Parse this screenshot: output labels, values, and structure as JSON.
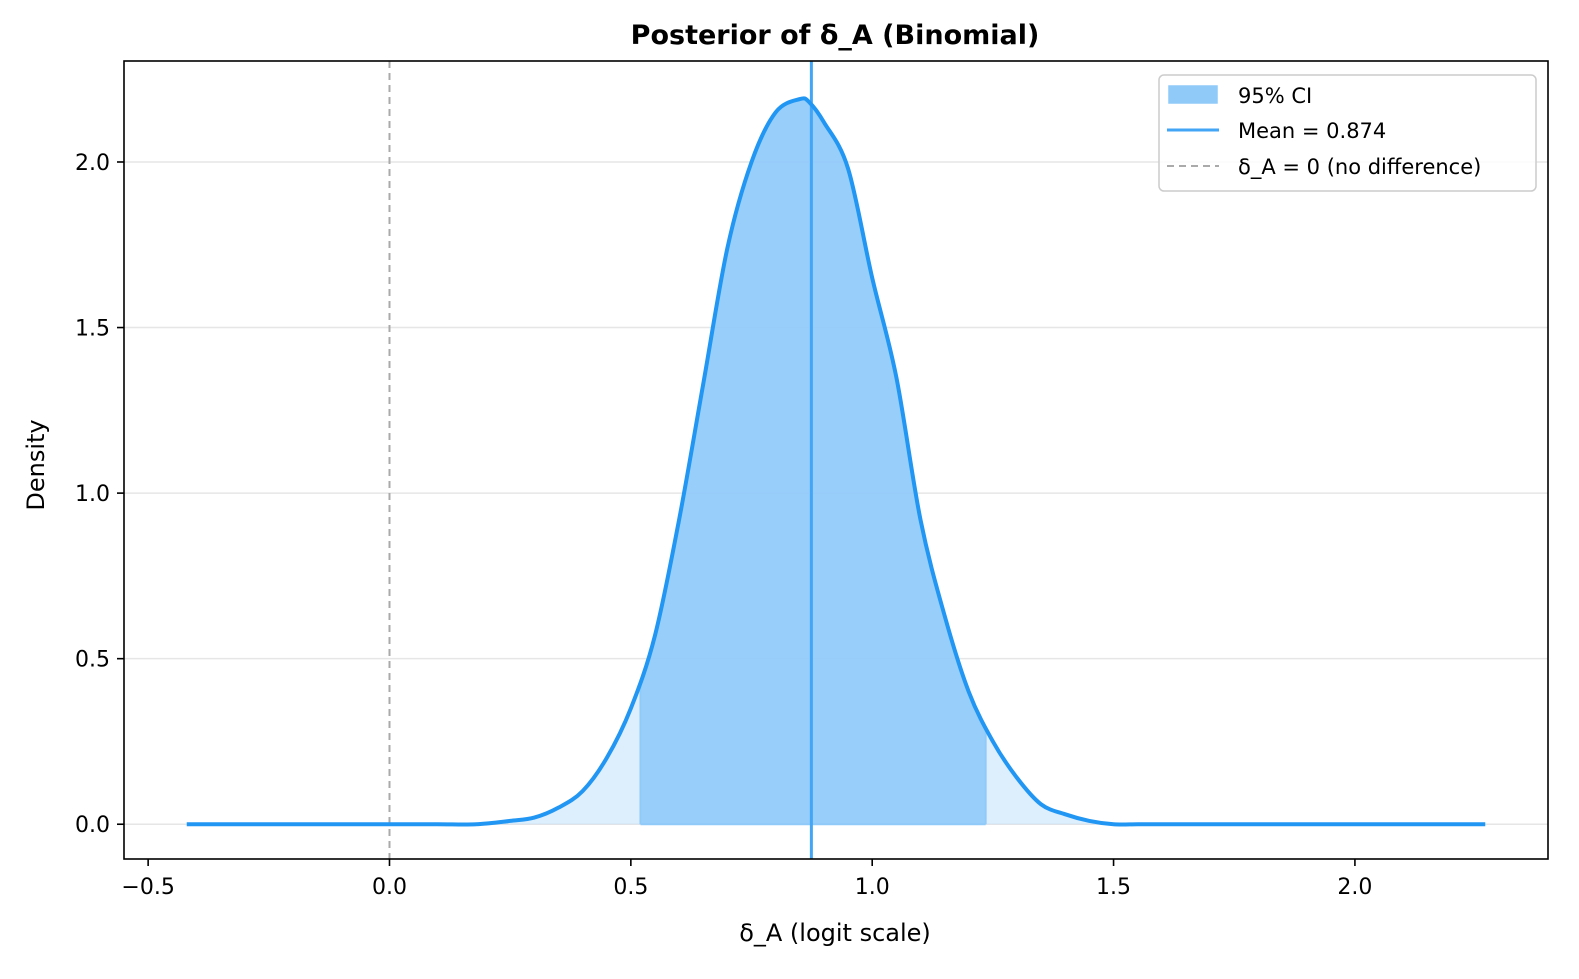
{
  "chart_data": {
    "type": "area",
    "title": "Posterior of δ_A (Binomial)",
    "xlabel": "δ_A (logit scale)",
    "ylabel": "Density",
    "xlim": [
      -0.55,
      2.4
    ],
    "ylim": [
      -0.105,
      2.305
    ],
    "x_ticks": [
      -0.5,
      0.0,
      0.5,
      1.0,
      1.5,
      2.0
    ],
    "x_tick_labels": [
      "−0.5",
      "0.0",
      "0.5",
      "1.0",
      "1.5",
      "2.0"
    ],
    "y_ticks": [
      0.0,
      0.5,
      1.0,
      1.5,
      2.0
    ],
    "y_tick_labels": [
      "0.0",
      "0.5",
      "1.0",
      "1.5",
      "2.0"
    ],
    "grid": {
      "y": true,
      "x": false
    },
    "legend_position": "top-right",
    "legend": [
      {
        "label": "95% CI",
        "kind": "patch"
      },
      {
        "label": "Mean = 0.874",
        "kind": "line"
      },
      {
        "label": "δ_A = 0 (no difference)",
        "kind": "dashed-line"
      }
    ],
    "density": {
      "x": [
        -0.42,
        -0.2,
        0.0,
        0.1,
        0.18,
        0.25,
        0.3,
        0.35,
        0.4,
        0.45,
        0.5,
        0.55,
        0.6,
        0.65,
        0.7,
        0.75,
        0.8,
        0.85,
        0.87,
        0.9,
        0.95,
        1.0,
        1.05,
        1.1,
        1.15,
        1.2,
        1.25,
        1.3,
        1.35,
        1.4,
        1.45,
        1.5,
        1.55,
        1.6,
        1.8,
        2.0,
        2.27
      ],
      "y": [
        0.0,
        0.0,
        0.0,
        0.0,
        0.0,
        0.01,
        0.02,
        0.05,
        0.1,
        0.2,
        0.35,
        0.57,
        0.92,
        1.33,
        1.74,
        2.0,
        2.15,
        2.19,
        2.18,
        2.12,
        1.98,
        1.65,
        1.35,
        0.92,
        0.63,
        0.4,
        0.25,
        0.14,
        0.06,
        0.03,
        0.01,
        0.0,
        0.0,
        0.0,
        0.0,
        0.0,
        0.0
      ]
    },
    "ci_95": [
      0.52,
      1.235
    ],
    "mean": 0.874,
    "reference_x": 0.0,
    "colors": {
      "curve": "#2196f3",
      "ci_fill": "#90caf9",
      "tail_fill": "#bbdefb",
      "mean_line": "#42a5f5",
      "reference_line": "#aaaaaa",
      "grid": "#e6e6e6"
    }
  }
}
